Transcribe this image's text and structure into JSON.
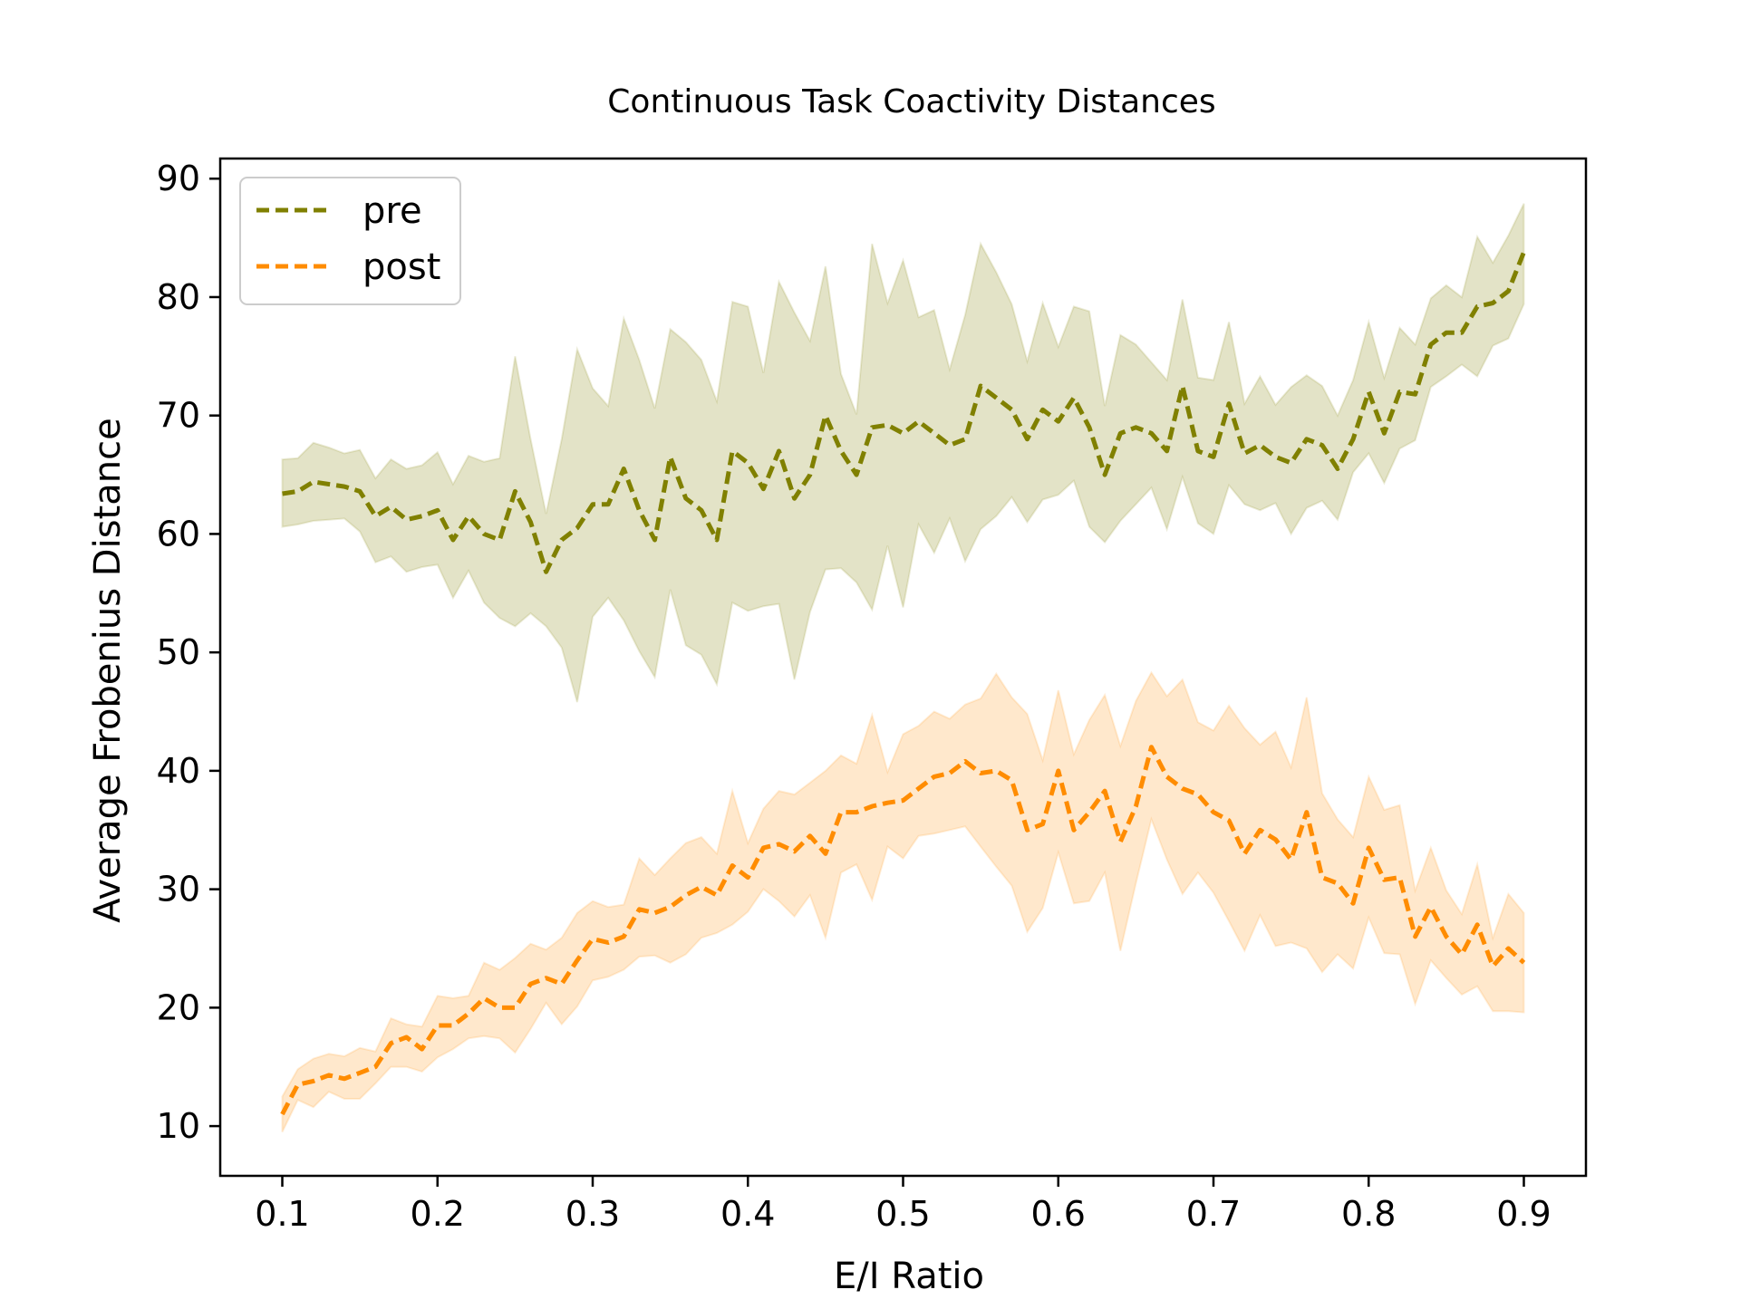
{
  "chart_data": {
    "type": "line",
    "title": "Continuous Task Coactivity Distances",
    "xlabel": "E/I Ratio",
    "ylabel": "Average Frobenius Distance",
    "xlim": [
      0.06,
      0.94
    ],
    "ylim": [
      5.8,
      91.7
    ],
    "xticks": [
      "0.1",
      "0.2",
      "0.3",
      "0.4",
      "0.5",
      "0.6",
      "0.7",
      "0.8",
      "0.9"
    ],
    "yticks": [
      "10",
      "20",
      "30",
      "40",
      "50",
      "60",
      "70",
      "80",
      "90"
    ],
    "grid": false,
    "legend": "top-left",
    "x": [
      0.1,
      0.11,
      0.12,
      0.13,
      0.14,
      0.15,
      0.16,
      0.17,
      0.18,
      0.19,
      0.2,
      0.21,
      0.22,
      0.23,
      0.24,
      0.25,
      0.26,
      0.27,
      0.28,
      0.29,
      0.3,
      0.31,
      0.32,
      0.33,
      0.34,
      0.35,
      0.36,
      0.37,
      0.38,
      0.39,
      0.4,
      0.41,
      0.42,
      0.43,
      0.44,
      0.45,
      0.46,
      0.47,
      0.48,
      0.49,
      0.5,
      0.51,
      0.52,
      0.53,
      0.54,
      0.55,
      0.56,
      0.57,
      0.58,
      0.59,
      0.6,
      0.61,
      0.62,
      0.63,
      0.64,
      0.65,
      0.66,
      0.67,
      0.68,
      0.69,
      0.7,
      0.71,
      0.72,
      0.73,
      0.74,
      0.75,
      0.76,
      0.77,
      0.78,
      0.79,
      0.8,
      0.81,
      0.82,
      0.83,
      0.84,
      0.85,
      0.86,
      0.87,
      0.88,
      0.89,
      0.9
    ],
    "series": [
      {
        "name": "pre",
        "color": "#808000",
        "fill": "rgba(128,128,0,0.22)",
        "values": [
          63.4,
          63.6,
          64.4,
          64.2,
          64.0,
          63.6,
          61.5,
          62.3,
          61.2,
          61.5,
          62.0,
          59.5,
          61.5,
          60.0,
          59.5,
          63.6,
          61.0,
          56.8,
          59.5,
          60.5,
          62.5,
          62.5,
          65.5,
          62.0,
          59.5,
          66.5,
          63.0,
          62.0,
          59.5,
          67.0,
          66.0,
          63.8,
          67.0,
          63.0,
          65.0,
          70.0,
          67.0,
          65.0,
          69.0,
          69.2,
          68.5,
          69.5,
          68.5,
          67.5,
          68.0,
          72.5,
          71.5,
          70.5,
          68.0,
          70.5,
          69.5,
          71.5,
          69.0,
          65.0,
          68.5,
          69.0,
          68.5,
          67.0,
          72.5,
          67.0,
          66.5,
          71.0,
          66.8,
          67.5,
          66.5,
          66.0,
          68.0,
          67.5,
          65.5,
          68.0,
          72.0,
          68.5,
          72.0,
          71.8,
          76.0,
          77.0,
          77.0,
          79.2,
          79.5,
          80.5,
          83.8
        ],
        "upper": [
          66.3,
          66.4,
          67.7,
          67.3,
          66.8,
          67.1,
          64.7,
          66.3,
          65.5,
          65.8,
          66.9,
          64.2,
          66.6,
          66.1,
          66.4,
          75.0,
          68.0,
          61.7,
          68.0,
          75.6,
          72.3,
          70.8,
          78.2,
          74.7,
          70.6,
          77.3,
          76.2,
          74.7,
          71.2,
          79.6,
          79.2,
          73.6,
          81.3,
          78.7,
          76.3,
          82.6,
          73.5,
          70.1,
          84.5,
          79.5,
          83.1,
          78.3,
          78.9,
          73.9,
          78.5,
          84.5,
          82.1,
          79.4,
          74.6,
          79.5,
          75.8,
          79.2,
          78.8,
          70.8,
          76.8,
          76.0,
          74.5,
          73.0,
          79.8,
          73.2,
          73.0,
          77.9,
          71.0,
          73.3,
          70.9,
          72.4,
          73.4,
          72.5,
          70.0,
          73.0,
          77.9,
          73.2,
          77.4,
          76.0,
          79.9,
          81.0,
          80.0,
          85.1,
          82.9,
          85.2,
          87.9
        ],
        "lower": [
          60.6,
          60.8,
          61.1,
          61.2,
          61.3,
          60.2,
          57.6,
          58.1,
          56.8,
          57.2,
          57.4,
          54.6,
          56.9,
          54.2,
          52.9,
          52.2,
          53.3,
          52.2,
          50.4,
          45.8,
          53.0,
          54.6,
          52.7,
          50.1,
          47.9,
          55.3,
          50.6,
          49.8,
          47.3,
          54.2,
          53.5,
          53.9,
          54.1,
          47.7,
          53.4,
          57.0,
          57.1,
          55.9,
          53.6,
          59.0,
          53.8,
          60.8,
          58.4,
          61.3,
          57.7,
          60.4,
          61.5,
          63.1,
          61.0,
          62.9,
          63.3,
          64.5,
          60.6,
          59.3,
          61.1,
          62.5,
          63.9,
          60.4,
          64.8,
          60.9,
          60.0,
          64.1,
          62.5,
          62.0,
          62.6,
          60.0,
          62.2,
          62.8,
          61.2,
          65.2,
          66.8,
          64.3,
          67.2,
          67.9,
          72.4,
          73.3,
          74.3,
          73.3,
          75.9,
          76.5,
          79.4
        ]
      },
      {
        "name": "post",
        "color": "#ff8c00",
        "fill": "rgba(255,140,0,0.2)",
        "values": [
          11.0,
          13.5,
          13.8,
          14.3,
          14.0,
          14.5,
          15.0,
          17.0,
          17.5,
          16.5,
          18.5,
          18.5,
          19.5,
          20.8,
          20.0,
          20.0,
          22.0,
          22.5,
          22.0,
          24.0,
          25.8,
          25.5,
          26.0,
          28.3,
          28.0,
          28.5,
          29.5,
          30.2,
          29.5,
          32.0,
          31.0,
          33.5,
          33.8,
          33.2,
          34.5,
          33.0,
          36.5,
          36.5,
          37.0,
          37.3,
          37.5,
          38.5,
          39.5,
          39.8,
          40.8,
          39.8,
          40.0,
          39.2,
          35.0,
          35.5,
          40.0,
          35.0,
          36.5,
          38.3,
          34.0,
          37.0,
          42.0,
          39.5,
          38.5,
          38.0,
          36.5,
          35.8,
          33.0,
          35.0,
          34.2,
          32.5,
          36.5,
          31.0,
          30.5,
          28.8,
          33.5,
          30.8,
          31.0,
          26.0,
          28.5,
          26.0,
          24.5,
          27.0,
          23.5,
          25.0,
          23.8
        ],
        "upper": [
          12.5,
          14.8,
          15.7,
          16.1,
          15.9,
          16.6,
          16.3,
          19.1,
          18.6,
          18.4,
          21.0,
          20.8,
          21.0,
          23.8,
          23.2,
          24.2,
          25.4,
          24.9,
          25.9,
          28.0,
          29.0,
          28.5,
          28.7,
          32.6,
          31.2,
          32.6,
          33.9,
          34.4,
          33.0,
          38.3,
          33.9,
          36.8,
          38.3,
          38.0,
          39.0,
          40.0,
          41.3,
          40.6,
          44.7,
          39.9,
          43.1,
          43.8,
          45.0,
          44.4,
          45.6,
          46.1,
          48.2,
          46.2,
          44.8,
          40.9,
          46.8,
          41.4,
          44.3,
          46.4,
          42.1,
          45.9,
          48.3,
          46.3,
          47.7,
          44.1,
          43.4,
          45.5,
          43.6,
          42.2,
          43.3,
          40.3,
          46.2,
          38.1,
          35.9,
          34.4,
          39.5,
          36.7,
          37.1,
          29.9,
          33.5,
          29.9,
          27.9,
          32.1,
          25.9,
          29.6,
          28.0
        ],
        "lower": [
          9.5,
          12.2,
          11.6,
          12.9,
          12.3,
          12.3,
          13.6,
          15.0,
          15.0,
          14.6,
          15.8,
          16.5,
          17.4,
          17.6,
          17.4,
          16.2,
          18.2,
          20.4,
          18.6,
          20.1,
          22.3,
          22.6,
          23.2,
          24.3,
          24.4,
          23.8,
          24.5,
          25.9,
          26.3,
          27.0,
          28.1,
          30.0,
          29.0,
          27.7,
          29.5,
          25.9,
          31.4,
          32.1,
          29.1,
          33.6,
          32.6,
          34.5,
          34.7,
          35.0,
          35.3,
          33.6,
          31.9,
          30.3,
          26.4,
          28.4,
          33.1,
          28.8,
          29.0,
          31.4,
          24.8,
          30.5,
          35.9,
          32.5,
          29.6,
          31.4,
          29.7,
          27.3,
          24.8,
          27.8,
          25.2,
          25.5,
          25.0,
          23.0,
          24.5,
          23.3,
          27.6,
          24.6,
          24.5,
          20.3,
          24.0,
          22.5,
          21.1,
          21.8,
          19.7,
          19.7,
          19.6
        ]
      }
    ]
  }
}
